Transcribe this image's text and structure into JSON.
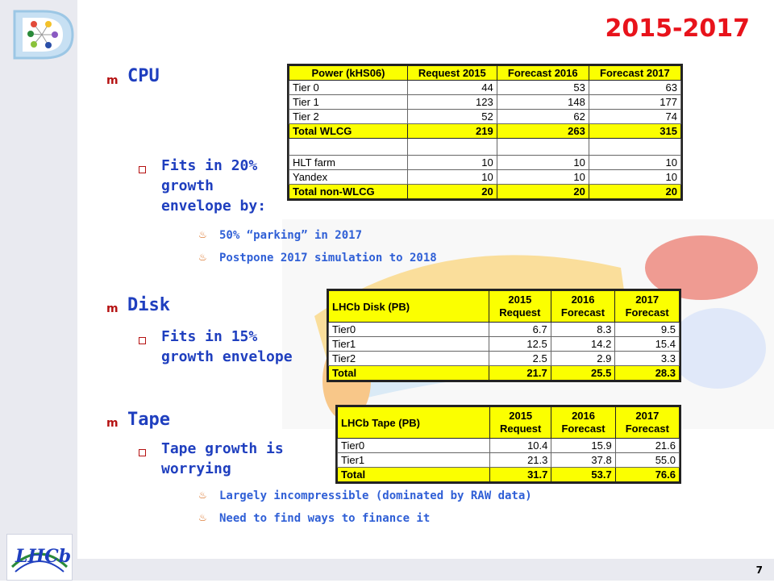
{
  "slide": {
    "title": "2015-2017",
    "page_number": "7"
  },
  "cpu": {
    "heading": "CPU",
    "sub": "Fits in 20% growth envelope by:",
    "sub_lines": [
      "Fits in 20%",
      "growth",
      "envelope by:"
    ],
    "points": [
      "50% “parking” in 2017",
      "Postpone 2017 simulation to 2018"
    ],
    "table": {
      "headers": [
        "Power (kHS06)",
        "Request 2015",
        "Forecast 2016",
        "Forecast 2017"
      ],
      "rows": [
        [
          "Tier 0",
          "44",
          "53",
          "63"
        ],
        [
          "Tier 1",
          "123",
          "148",
          "177"
        ],
        [
          "Tier 2",
          "52",
          "62",
          "74"
        ]
      ],
      "total": [
        "Total WLCG",
        "219",
        "263",
        "315"
      ],
      "rows2": [
        [
          "HLT farm",
          "10",
          "10",
          "10"
        ],
        [
          "Yandex",
          "10",
          "10",
          "10"
        ]
      ],
      "total2": [
        "Total non-WLCG",
        "20",
        "20",
        "20"
      ]
    }
  },
  "disk": {
    "heading": "Disk",
    "sub_lines": [
      "Fits in 15%",
      "growth envelope"
    ],
    "table": {
      "headers": [
        "LHCb Disk (PB)",
        "2015 Request",
        "2016 Forecast",
        "2017 Forecast"
      ],
      "rows": [
        [
          "Tier0",
          "6.7",
          "8.3",
          "9.5"
        ],
        [
          "Tier1",
          "12.5",
          "14.2",
          "15.4"
        ],
        [
          "Tier2",
          "2.5",
          "2.9",
          "3.3"
        ]
      ],
      "total": [
        "Total",
        "21.7",
        "25.5",
        "28.3"
      ]
    }
  },
  "tape": {
    "heading": "Tape",
    "sub_lines": [
      "Tape growth is",
      "worrying"
    ],
    "points": [
      "Largely incompressible (dominated by RAW data)",
      "Need to find ways to finance it"
    ],
    "table": {
      "headers": [
        "LHCb Tape (PB)",
        "2015 Request",
        "2016 Forecast",
        "2017 Forecast"
      ],
      "rows": [
        [
          "Tier0",
          "10.4",
          "15.9",
          "21.6"
        ],
        [
          "Tier1",
          "21.3",
          "37.8",
          "55.0"
        ]
      ],
      "total": [
        "Total",
        "31.7",
        "53.7",
        "76.6"
      ]
    }
  },
  "logos": {
    "bottom_logo_text": "LHCb"
  },
  "colors": {
    "title": "#e8131b",
    "text": "#1f3fbf",
    "highlight": "#fbff00"
  }
}
